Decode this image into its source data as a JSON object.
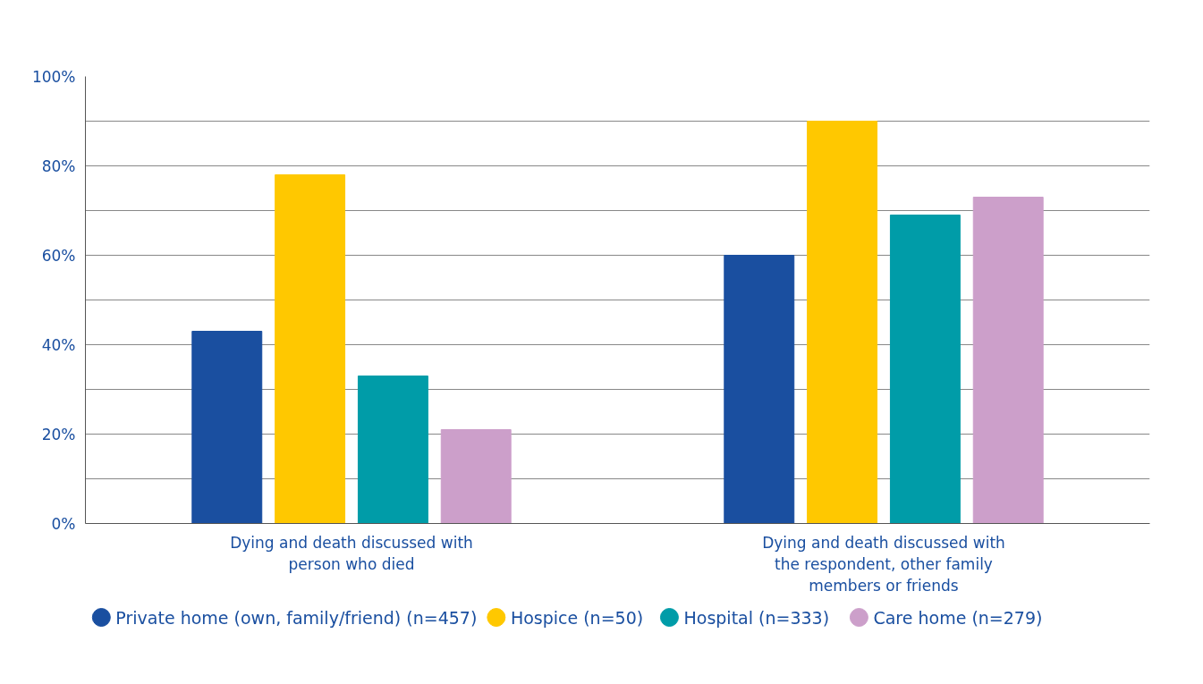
{
  "chart_data": {
    "type": "bar",
    "categories": [
      "Dying and death discussed with person who died",
      "Dying and death discussed with the respondent, other family members or friends"
    ],
    "series": [
      {
        "name": "Private home (own, family/friend) (n=457)",
        "color": "#1a4fa0",
        "values": [
          43,
          60
        ]
      },
      {
        "name": "Hospice (n=50)",
        "color": "#ffc800",
        "values": [
          78,
          90
        ]
      },
      {
        "name": "Hospital (n=333)",
        "color": "#009ca8",
        "values": [
          33,
          69
        ]
      },
      {
        "name": "Care home (n=279)",
        "color": "#cc9fca",
        "values": [
          21,
          73
        ]
      }
    ],
    "ylim": [
      0,
      100
    ],
    "yticks": [
      {
        "value": 0,
        "label": "0%"
      },
      {
        "value": 10,
        "label": null
      },
      {
        "value": 20,
        "label": "20%"
      },
      {
        "value": 30,
        "label": null
      },
      {
        "value": 40,
        "label": "40%"
      },
      {
        "value": 50,
        "label": null
      },
      {
        "value": 60,
        "label": "60%"
      },
      {
        "value": 70,
        "label": null
      },
      {
        "value": 80,
        "label": "80%"
      },
      {
        "value": 90,
        "label": null
      },
      {
        "value": 100,
        "label": "100%"
      }
    ],
    "grid": "y",
    "legend": "bottom",
    "marker": "circle"
  }
}
